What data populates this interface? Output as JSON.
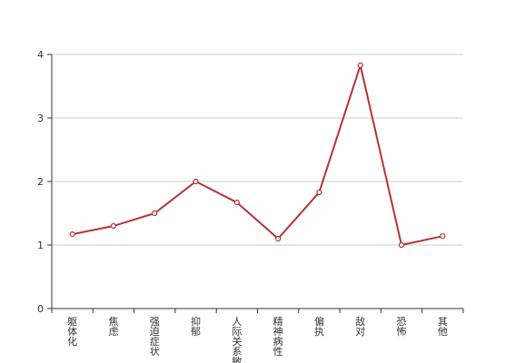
{
  "chart_data": {
    "type": "line",
    "categories": [
      "躯体化",
      "焦虑",
      "强迫症状",
      "抑郁",
      "人际关系敏感",
      "精神病性",
      "偏执",
      "敌对",
      "恐怖",
      "其他"
    ],
    "series": [
      {
        "values": [
          1.17,
          1.3,
          1.5,
          2.0,
          1.67,
          1.1,
          1.83,
          3.83,
          1.0,
          1.14
        ]
      }
    ],
    "ylim": [
      0,
      4
    ],
    "yticks": [
      0,
      1,
      2,
      3,
      4
    ],
    "grid": true,
    "colors": {
      "line": "#b83236",
      "grid": "#cccccc",
      "axis": "#333333",
      "marker_fill": "#ffffff"
    }
  }
}
